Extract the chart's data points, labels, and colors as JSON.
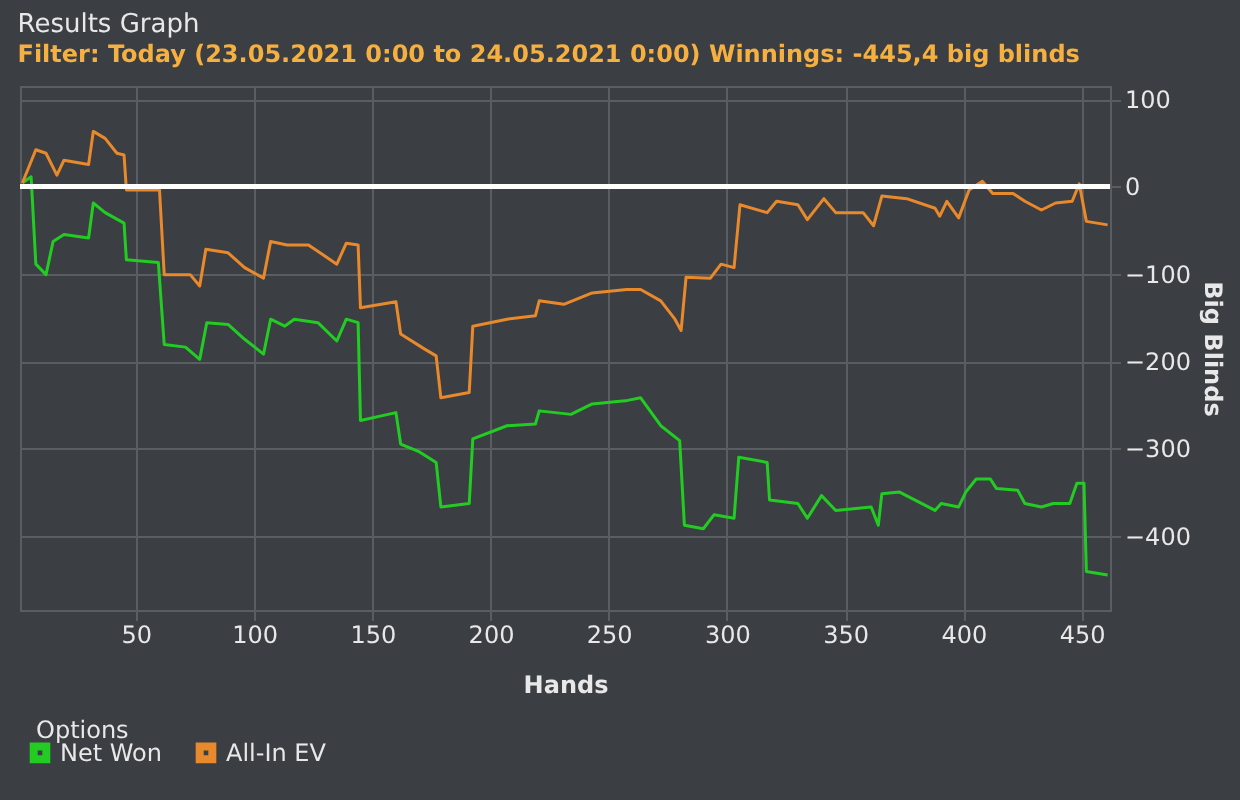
{
  "chart_data": {
    "type": "line",
    "title": "Results Graph",
    "subtitle": "Filter: Today (23.05.2021 0:00 to 24.05.2021 0:00) Winnings: -445,4 big blinds",
    "xlabel": "Hands",
    "ylabel": "Big Blinds",
    "xlim": [
      1,
      462
    ],
    "ylim": [
      -485,
      115
    ],
    "xticks": [
      50,
      100,
      150,
      200,
      250,
      300,
      350,
      400,
      450
    ],
    "yticks": [
      100,
      0,
      -100,
      -200,
      -300,
      -400
    ],
    "grid": true,
    "legend": "bottom",
    "marker": "none",
    "line_style": "solid",
    "ref_lines": [
      {
        "axis": "y",
        "value": 0,
        "color": "#ffffff"
      }
    ],
    "annotations": [
      "Options"
    ],
    "series": [
      {
        "name": "Net Won",
        "color": "#22cc22",
        "x": [
          2,
          5.7,
          7.7,
          12,
          15,
          19.6,
          30,
          32,
          37,
          45,
          46,
          59.5,
          62,
          71,
          77,
          80,
          89,
          96,
          104,
          107,
          113,
          117,
          127,
          135,
          139,
          144,
          145,
          160,
          162,
          170,
          177,
          179,
          191,
          192.5,
          207,
          219,
          220.6,
          234,
          243,
          258,
          263.5,
          272,
          280,
          282,
          290,
          294.5,
          303,
          305,
          317,
          318,
          330,
          334,
          340,
          346,
          361,
          364,
          365.5,
          373,
          388,
          390.6,
          398,
          401,
          405.4,
          411.4,
          414,
          423,
          426,
          433,
          438,
          445,
          448,
          451,
          452,
          461
        ],
        "values": [
          4,
          11,
          -89,
          -101,
          -63,
          -55,
          -59,
          -19,
          -30,
          -42,
          -84,
          -87,
          -181,
          -184,
          -198,
          -156,
          -158,
          -175,
          -192,
          -152,
          -160,
          -152,
          -156,
          -177,
          -152,
          -156,
          -268,
          -259,
          -295,
          -304,
          -316,
          -367,
          -363,
          -289,
          -274,
          -272,
          -257,
          -261,
          -249,
          -245,
          -242,
          -274,
          -291,
          -388,
          -392,
          -376,
          -380,
          -310,
          -316,
          -359,
          -363,
          -380,
          -354,
          -371,
          -367,
          -388,
          -352,
          -350,
          -371,
          -363,
          -367,
          -350,
          -335,
          -335,
          -346,
          -348,
          -363,
          -367,
          -363,
          -363,
          -340,
          -340,
          -441,
          -445
        ]
      },
      {
        "name": "All-In EV",
        "color": "#e8892b",
        "x": [
          2,
          7.7,
          12,
          16.6,
          19.6,
          30,
          32,
          37,
          42,
          45,
          46,
          60,
          62,
          73,
          77,
          79.6,
          89,
          96,
          104,
          107,
          114,
          123,
          135,
          139,
          144,
          145,
          160,
          162,
          172,
          177,
          179,
          191,
          192.5,
          207,
          219,
          220.6,
          231,
          243,
          257.6,
          263.5,
          272,
          278,
          280.6,
          282.7,
          293,
          297.5,
          303,
          305.5,
          317,
          321,
          330,
          334,
          341,
          346,
          357.6,
          362,
          365.5,
          376,
          388,
          390,
          393,
          398,
          402.4,
          408,
          412.4,
          421,
          426,
          433,
          439,
          446,
          449,
          452,
          461
        ],
        "values": [
          4,
          42,
          38,
          13,
          30,
          25,
          63,
          55,
          38,
          36,
          -4,
          -4,
          -101,
          -101,
          -114,
          -72,
          -76,
          -93,
          -105,
          -63,
          -67,
          -67,
          -89,
          -65,
          -67,
          -139,
          -132,
          -169,
          -186,
          -194,
          -242,
          -236,
          -160,
          -152,
          -148,
          -131,
          -135,
          -122,
          -118,
          -118,
          -131,
          -152,
          -165,
          -104,
          -105,
          -89,
          -93,
          -21,
          -30,
          -17,
          -21,
          -38,
          -14,
          -30,
          -30,
          -45,
          -11,
          -14,
          -25,
          -34,
          -17,
          -36,
          -4,
          6,
          -8,
          -8,
          -17,
          -27,
          -19,
          -17,
          3,
          -40,
          -44
        ]
      }
    ]
  }
}
